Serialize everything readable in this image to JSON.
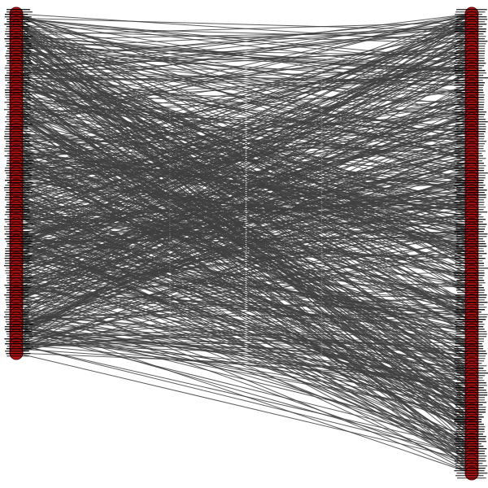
{
  "diagram": {
    "type": "bipartite-graph",
    "background": "#ffffff",
    "colors": {
      "edge": "#404040",
      "node_fill": "#b31515",
      "node_stroke": "#5a0000",
      "label": "#000000"
    },
    "left_partition": {
      "node_count": 80
    },
    "right_partition": {
      "node_count": 110
    },
    "edge_count": 700
  }
}
